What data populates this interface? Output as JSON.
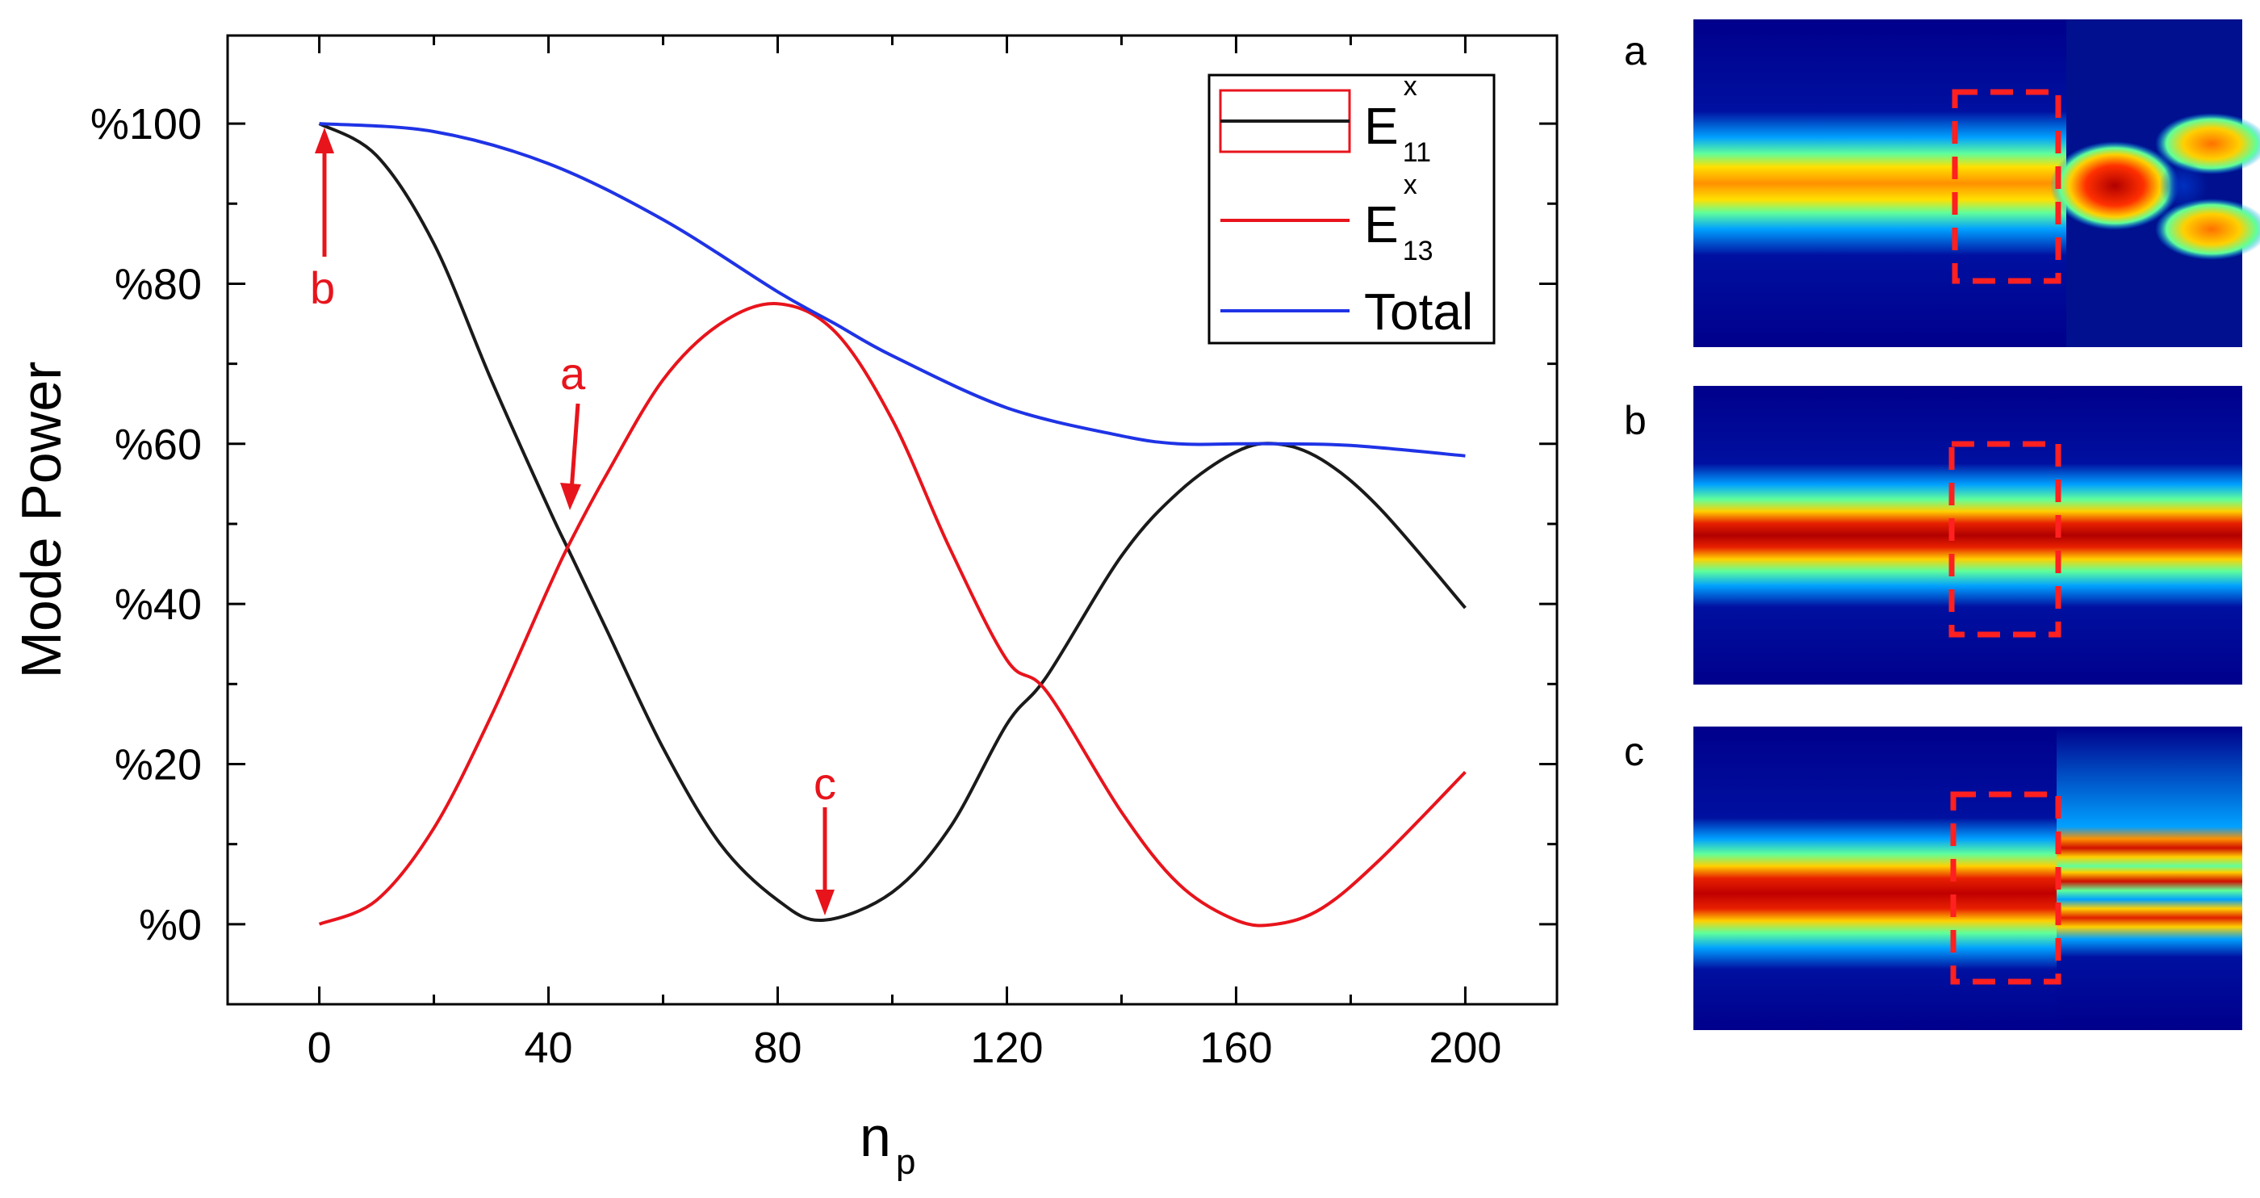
{
  "chart_data": {
    "type": "line",
    "xlabel": "n",
    "xlabel_sub": "p",
    "ylabel": "Mode Power",
    "xlim": [
      -16,
      216
    ],
    "ylim": [
      -10,
      111
    ],
    "xticks": [
      0,
      40,
      80,
      120,
      160,
      200
    ],
    "xtick_labels": [
      "0",
      "40",
      "80",
      "120",
      "160",
      "200"
    ],
    "yticks": [
      0,
      20,
      40,
      60,
      80,
      100
    ],
    "ytick_labels": [
      "%0",
      "%20",
      "%40",
      "%60",
      "%80",
      "%100"
    ],
    "legend_position": "top-right",
    "series": [
      {
        "name": "E11x",
        "legend_main": "E",
        "legend_sup": "x",
        "legend_sub": "11",
        "color": "#1a1a1a",
        "x": [
          0,
          10,
          20,
          30,
          40,
          44,
          50,
          60,
          70,
          80,
          88,
          100,
          110,
          120,
          127,
          140,
          150,
          160,
          167,
          175,
          185,
          200
        ],
        "y": [
          100,
          96,
          85,
          68,
          52,
          46,
          37,
          22,
          10,
          3,
          0.5,
          4,
          12,
          25,
          31,
          46,
          54,
          59,
          60,
          58,
          52,
          39.5
        ]
      },
      {
        "name": "E13x",
        "legend_main": "E",
        "legend_sup": "x",
        "legend_sub": "13",
        "color": "#e8141c",
        "x": [
          0,
          10,
          20,
          30,
          40,
          44,
          50,
          60,
          70,
          80,
          90,
          100,
          110,
          120,
          127,
          140,
          150,
          160,
          167,
          175,
          185,
          200
        ],
        "y": [
          0,
          3,
          12,
          26,
          42,
          48,
          56,
          68,
          75,
          77.5,
          74,
          63,
          47,
          33,
          29,
          14,
          5,
          0.5,
          0,
          2,
          8,
          19
        ]
      },
      {
        "name": "Total",
        "legend_main": "Total",
        "legend_sup": "",
        "legend_sub": "",
        "color": "#1f33e6",
        "x": [
          0,
          20,
          40,
          60,
          80,
          90,
          100,
          120,
          140,
          150,
          160,
          167,
          180,
          200
        ],
        "y": [
          100,
          99,
          95,
          88,
          79,
          75,
          71,
          64.5,
          61,
          60,
          60,
          60,
          59.8,
          58.5
        ]
      }
    ],
    "annotations": [
      {
        "label": "b",
        "x": 2,
        "y": 100
      },
      {
        "label": "a",
        "x": 44,
        "y": 48
      },
      {
        "label": "c",
        "x": 88,
        "y": 1
      }
    ]
  },
  "panels": [
    {
      "label": "a"
    },
    {
      "label": "b"
    },
    {
      "label": "c"
    }
  ]
}
